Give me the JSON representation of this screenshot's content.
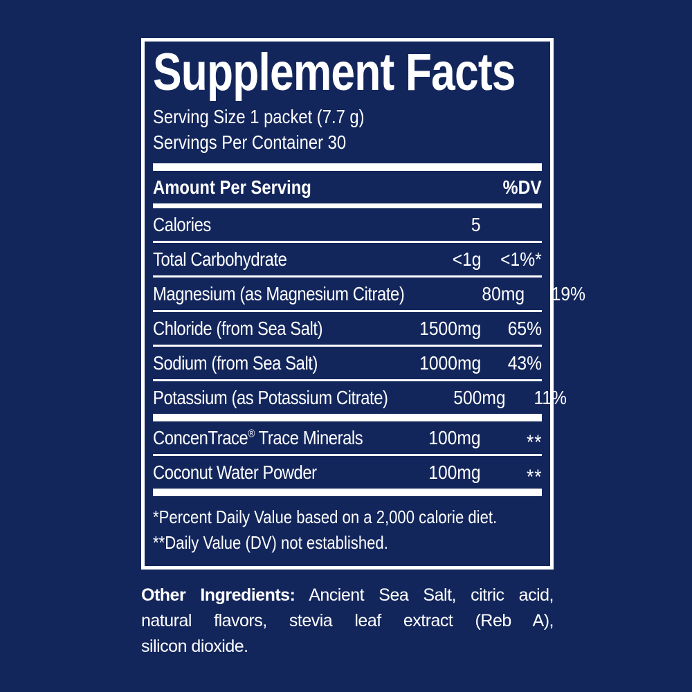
{
  "colors": {
    "background": "#13265c",
    "text": "#ffffff",
    "rules": "#ffffff"
  },
  "label": {
    "title": "Supplement Facts",
    "serving_size": "Serving Size 1 packet (7.7 g)",
    "servings_per_container": "Servings Per Container 30",
    "header": {
      "amount": "Amount Per Serving",
      "dv": "%DV"
    },
    "rows": [
      {
        "name": "Calories",
        "amount": "5",
        "dv": ""
      },
      {
        "name": "Total Carbohydrate",
        "amount": "<1g",
        "dv": "<1%*"
      },
      {
        "name": "Magnesium (as Magnesium Citrate)",
        "amount": "80mg",
        "dv": "19%"
      },
      {
        "name": "Chloride (from Sea Salt)",
        "amount": "1500mg",
        "dv": "65%"
      },
      {
        "name": "Sodium (from Sea Salt)",
        "amount": "1000mg",
        "dv": "43%"
      },
      {
        "name": "Potassium (as Potassium Citrate)",
        "amount": "500mg",
        "dv": "11%"
      }
    ],
    "secondary_rows": [
      {
        "brand": "ConcenTrace",
        "reg": "®",
        "rest": " Trace Minerals",
        "amount": "100mg",
        "dv": "**"
      },
      {
        "brand": "",
        "reg": "",
        "rest": "Coconut Water Powder",
        "amount": "100mg",
        "dv": "**"
      }
    ],
    "footnotes": [
      "*Percent Daily Value based on a 2,000 calorie diet.",
      "**Daily Value (DV) not established."
    ],
    "other_ingredients": {
      "label": "Other Ingredients:",
      "line1_rest": "Ancient Sea Salt, citric acid,",
      "line2": "natural flavors, stevia leaf extract (Reb A),",
      "line3": "silicon dioxide."
    }
  }
}
